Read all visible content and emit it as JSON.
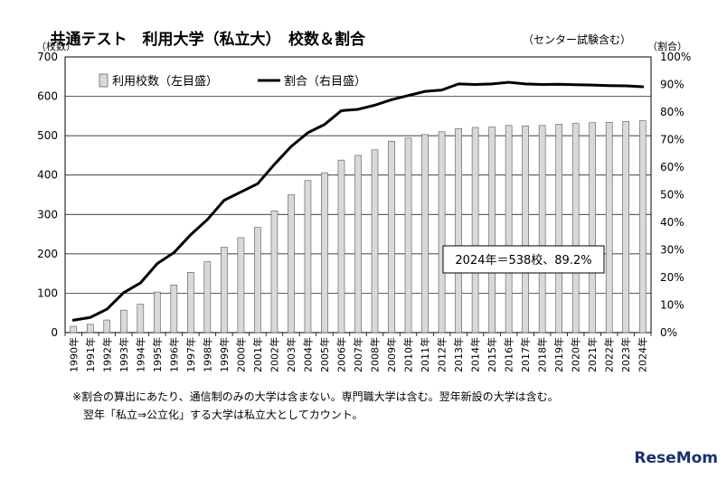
{
  "chart_data": {
    "type": "bar",
    "title": "共通テスト　利用大学（私立大）　校数＆割合",
    "subtitle": "（センター試験含む）",
    "y_left_label": "（校数）",
    "y_right_label": "（割合）",
    "ylim_left": [
      0,
      700
    ],
    "ylim_right": [
      0,
      100
    ],
    "yticks_left": [
      "0",
      "100",
      "200",
      "300",
      "400",
      "500",
      "600",
      "700"
    ],
    "yticks_right": [
      "0%",
      "10%",
      "20%",
      "30%",
      "40%",
      "50%",
      "60%",
      "70%",
      "80%",
      "90%",
      "100%"
    ],
    "grid": true,
    "legend_position": "top-left",
    "categories": [
      "1990年",
      "1991年",
      "1992年",
      "1993年",
      "1994年",
      "1995年",
      "1996年",
      "1997年",
      "1998年",
      "1999年",
      "2000年",
      "2001年",
      "2002年",
      "2003年",
      "2004年",
      "2005年",
      "2006年",
      "2007年",
      "2008年",
      "2009年",
      "2010年",
      "2011年",
      "2012年",
      "2013年",
      "2014年",
      "2015年",
      "2016年",
      "2017年",
      "2018年",
      "2019年",
      "2020年",
      "2021年",
      "2022年",
      "2023年",
      "2024年"
    ],
    "series": [
      {
        "name": "利用校数（左目盛）",
        "type": "bar",
        "axis": "left",
        "color": "#d9d9d9",
        "values": [
          16,
          21,
          32,
          57,
          72,
          103,
          121,
          153,
          180,
          217,
          241,
          267,
          309,
          350,
          386,
          406,
          438,
          450,
          464,
          486,
          494,
          503,
          510,
          518,
          521,
          522,
          526,
          525,
          526,
          529,
          531,
          533,
          534,
          536,
          538
        ]
      },
      {
        "name": "割合（右目盛）",
        "type": "line",
        "axis": "right",
        "color": "#000000",
        "values": [
          4.5,
          5.5,
          8.5,
          14.5,
          18.0,
          25.0,
          29.0,
          35.5,
          41.0,
          48.0,
          51.0,
          54.0,
          61.0,
          67.5,
          72.5,
          75.5,
          80.5,
          81.0,
          82.5,
          84.5,
          86.0,
          87.5,
          88.0,
          90.2,
          90.0,
          90.2,
          90.8,
          90.2,
          90.0,
          90.1,
          89.9,
          89.8,
          89.6,
          89.5,
          89.2
        ]
      }
    ],
    "annotation": "2024年＝538校、89.2%"
  },
  "notes": [
    "※割合の算出にあたり、通信制のみの大学は含まない。専門職大学は含む。翌年新設の大学は含む。",
    "翌年「私立⇒公立化」する大学は私立大としてカウント。"
  ],
  "brand": {
    "name_part1": "Rese",
    "name_part2": "Mom",
    "color": "#1a2f6e"
  }
}
